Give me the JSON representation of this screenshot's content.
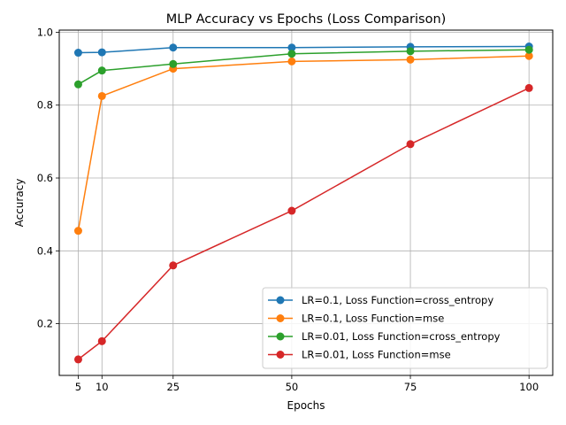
{
  "chart_data": {
    "type": "line",
    "title": "MLP Accuracy vs Epochs (Loss Comparison)",
    "xlabel": "Epochs",
    "ylabel": "Accuracy",
    "x": [
      5,
      10,
      25,
      50,
      75,
      100
    ],
    "x_ticks": [
      5,
      10,
      25,
      50,
      75,
      100
    ],
    "y_ticks": [
      0.2,
      0.4,
      0.6,
      0.8,
      1.0
    ],
    "y_tick_labels": [
      "0.2",
      "0.4",
      "0.6",
      "0.8",
      "1.0"
    ],
    "xlim": [
      1,
      105
    ],
    "ylim": [
      0.058,
      1.006
    ],
    "grid": true,
    "legend_position": "lower-right",
    "series": [
      {
        "name": "LR=0.1, Loss Function=cross_entropy",
        "color": "#1f77b4",
        "values": [
          0.944,
          0.945,
          0.958,
          0.958,
          0.96,
          0.961
        ]
      },
      {
        "name": "LR=0.1, Loss Function=mse",
        "color": "#ff7f0e",
        "values": [
          0.455,
          0.825,
          0.9,
          0.92,
          0.925,
          0.935
        ]
      },
      {
        "name": "LR=0.01, Loss Function=cross_entropy",
        "color": "#2ca02c",
        "values": [
          0.857,
          0.895,
          0.913,
          0.941,
          0.948,
          0.952
        ]
      },
      {
        "name": "LR=0.01, Loss Function=mse",
        "color": "#d62728",
        "values": [
          0.102,
          0.152,
          0.36,
          0.51,
          0.693,
          0.847
        ]
      }
    ]
  }
}
